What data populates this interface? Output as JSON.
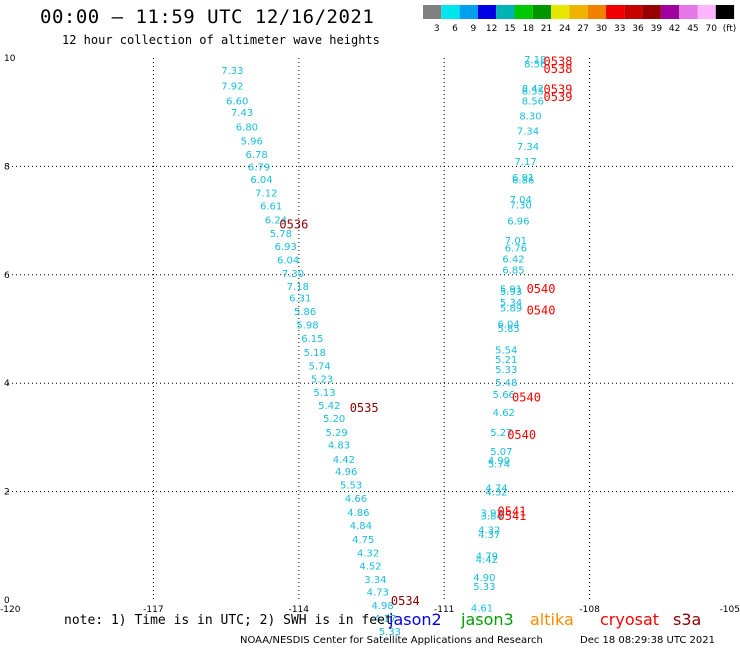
{
  "chart_data": {
    "type": "scatter",
    "title": "00:00 – 11:59 UTC 12/16/2021",
    "subtitle": "12 hour collection of altimeter wave heights",
    "xlim": [
      -120,
      -105
    ],
    "ylim": [
      0,
      10
    ],
    "x_ticks": [
      "-120",
      "-117",
      "-114",
      "-111",
      "-108",
      "-105"
    ],
    "y_ticks": [
      "0",
      "2",
      "4",
      "6",
      "8",
      "10"
    ],
    "grid": true,
    "colorbar": {
      "labels": [
        "3",
        "6",
        "9",
        "12",
        "15",
        "18",
        "21",
        "24",
        "27",
        "30",
        "33",
        "36",
        "39",
        "42",
        "45",
        "70",
        "(ft)"
      ],
      "colors": [
        "#808080",
        "#00e5ee",
        "#00a0f0",
        "#0000e6",
        "#00b4b4",
        "#00c800",
        "#009600",
        "#e6e600",
        "#f0b400",
        "#f08200",
        "#f00000",
        "#c80000",
        "#960000",
        "#a000a0",
        "#e678e6",
        "#ffb4ff",
        "#000000"
      ]
    },
    "swh_color": "#17bfdc",
    "series": [
      {
        "name": "",
        "values": [
          [
            -115.6,
            9.78,
            "7.33"
          ],
          [
            -115.6,
            9.49,
            "7.92"
          ],
          [
            -115.5,
            9.22,
            "6.60"
          ],
          [
            -115.4,
            9.0,
            "7.43"
          ],
          [
            -115.3,
            8.74,
            "6.80"
          ],
          [
            -115.2,
            8.48,
            "5.96"
          ],
          [
            -115.1,
            8.23,
            "6.78"
          ],
          [
            -115.05,
            8.0,
            "6.79"
          ],
          [
            -115.0,
            7.77,
            "6.04"
          ],
          [
            -114.9,
            7.52,
            "7.12"
          ],
          [
            -114.8,
            7.28,
            "6.61"
          ],
          [
            -114.7,
            7.02,
            "6.24"
          ],
          [
            -114.6,
            6.77,
            "5.78"
          ],
          [
            -114.5,
            6.53,
            "6.93"
          ],
          [
            -114.45,
            6.28,
            "6.04"
          ],
          [
            -114.35,
            6.03,
            "7.30"
          ],
          [
            -114.25,
            5.79,
            "7.18"
          ],
          [
            -114.2,
            5.58,
            "6.31"
          ],
          [
            -114.1,
            5.33,
            "5.86"
          ],
          [
            -114.05,
            5.08,
            "5.98"
          ],
          [
            -113.95,
            4.83,
            "6.15"
          ],
          [
            -113.9,
            4.58,
            "5.18"
          ],
          [
            -113.8,
            4.33,
            "5.74"
          ],
          [
            -113.75,
            4.09,
            "5.23"
          ],
          [
            -113.7,
            3.84,
            "5.13"
          ],
          [
            -113.6,
            3.6,
            "5.42"
          ],
          [
            -113.5,
            3.36,
            "5.20"
          ],
          [
            -113.45,
            3.1,
            "5.29"
          ],
          [
            -113.4,
            2.87,
            "4.83"
          ],
          [
            -113.3,
            2.6,
            "4.42"
          ],
          [
            -113.25,
            2.38,
            "4.96"
          ],
          [
            -113.15,
            2.13,
            "5.53"
          ],
          [
            -113.05,
            1.88,
            "4.66"
          ],
          [
            -113.0,
            1.62,
            "4.86"
          ],
          [
            -112.95,
            1.38,
            "4.84"
          ],
          [
            -112.9,
            1.13,
            "4.75"
          ],
          [
            -112.8,
            0.88,
            "4.32"
          ],
          [
            -112.75,
            0.64,
            "4.52"
          ],
          [
            -112.65,
            0.39,
            "3.34"
          ],
          [
            -112.6,
            0.16,
            "4.73"
          ],
          [
            -112.5,
            -0.09,
            "4.98"
          ],
          [
            -112.45,
            -0.33,
            "4.17"
          ],
          [
            -112.35,
            -0.57,
            "5.33"
          ]
        ]
      },
      {
        "name": "",
        "values": [
          [
            -109.35,
            9.98,
            "7.18"
          ],
          [
            -109.35,
            9.9,
            "8.56"
          ],
          [
            -109.4,
            9.45,
            "8.42"
          ],
          [
            -109.4,
            9.4,
            "8.55"
          ],
          [
            -109.4,
            9.22,
            "8.56"
          ],
          [
            -109.45,
            8.94,
            "8.30"
          ],
          [
            -109.5,
            8.66,
            "7.34"
          ],
          [
            -109.5,
            8.38,
            "7.34"
          ],
          [
            -109.55,
            8.1,
            "7.17"
          ],
          [
            -109.6,
            7.8,
            "6.91"
          ],
          [
            -109.6,
            7.76,
            "6.86"
          ],
          [
            -109.65,
            7.4,
            "7.04"
          ],
          [
            -109.65,
            7.3,
            "7.30"
          ],
          [
            -109.7,
            7.0,
            "6.96"
          ],
          [
            -109.75,
            6.64,
            "7.01"
          ],
          [
            -109.75,
            6.5,
            "6.76"
          ],
          [
            -109.8,
            6.3,
            "6.42"
          ],
          [
            -109.8,
            6.1,
            "6.85"
          ],
          [
            -109.85,
            5.75,
            "5.91"
          ],
          [
            -109.85,
            5.7,
            "5.93"
          ],
          [
            -109.85,
            5.5,
            "5.34"
          ],
          [
            -109.85,
            5.4,
            "5.89"
          ],
          [
            -109.9,
            5.1,
            "6.04"
          ],
          [
            -109.9,
            5.02,
            "5.85"
          ],
          [
            -109.95,
            4.62,
            "5.54"
          ],
          [
            -109.95,
            4.45,
            "5.21"
          ],
          [
            -109.95,
            4.26,
            "5.33"
          ],
          [
            -109.95,
            4.02,
            "5.48"
          ],
          [
            -110.0,
            3.8,
            "5.66"
          ],
          [
            -110.0,
            3.47,
            "4.62"
          ],
          [
            -110.05,
            3.1,
            "5.27"
          ],
          [
            -110.05,
            2.75,
            "5.07"
          ],
          [
            -110.1,
            2.58,
            "4.90"
          ],
          [
            -110.1,
            2.52,
            "5.74"
          ],
          [
            -110.15,
            2.08,
            "4.74"
          ],
          [
            -110.15,
            2.0,
            "4.32"
          ],
          [
            -110.25,
            1.61,
            "3.92"
          ],
          [
            -110.25,
            1.56,
            "3.84"
          ],
          [
            -110.3,
            1.3,
            "4.32"
          ],
          [
            -110.3,
            1.22,
            "4.37"
          ],
          [
            -110.35,
            0.82,
            "4.79"
          ],
          [
            -110.35,
            0.76,
            "4.42"
          ],
          [
            -110.4,
            0.42,
            "4.90"
          ],
          [
            -110.4,
            0.26,
            "5.33"
          ],
          [
            -110.45,
            -0.14,
            "4.61"
          ]
        ]
      }
    ],
    "time_labels": [
      {
        "x": -114.4,
        "y": 6.93,
        "text": "0536",
        "color": "#8b0000"
      },
      {
        "x": -112.95,
        "y": 3.54,
        "text": "0535",
        "color": "#8b0000"
      },
      {
        "x": -112.1,
        "y": -0.02,
        "text": "0534",
        "color": "#8b0000"
      },
      {
        "x": -108.95,
        "y": 9.94,
        "text": "0538",
        "color": "#ff0000"
      },
      {
        "x": -108.95,
        "y": 9.8,
        "text": "0538",
        "color": "#ff0000"
      },
      {
        "x": -108.95,
        "y": 9.42,
        "text": "0539",
        "color": "#ff0000"
      },
      {
        "x": -108.95,
        "y": 9.28,
        "text": "0539",
        "color": "#ff0000"
      },
      {
        "x": -109.3,
        "y": 5.74,
        "text": "0540",
        "color": "#ff0000"
      },
      {
        "x": -109.3,
        "y": 5.34,
        "text": "0540",
        "color": "#ff0000"
      },
      {
        "x": -109.6,
        "y": 3.74,
        "text": "0540",
        "color": "#ff0000"
      },
      {
        "x": -109.7,
        "y": 3.04,
        "text": "0540",
        "color": "#ff0000"
      },
      {
        "x": -109.9,
        "y": 1.63,
        "text": "0541",
        "color": "#ff0000"
      },
      {
        "x": -109.9,
        "y": 1.55,
        "text": "0541",
        "color": "#ff0000"
      }
    ]
  },
  "note": "note: 1) Time is in UTC; 2) SWH is in feet",
  "legend": [
    {
      "label": "jason2",
      "color": "#0000ee"
    },
    {
      "label": "jason3",
      "color": "#00a000"
    },
    {
      "label": "altika",
      "color": "#ff8c00"
    },
    {
      "label": "cryosat",
      "color": "#ff0000"
    },
    {
      "label": "s3a",
      "color": "#8b0000"
    }
  ],
  "footer": "NOAA/NESDIS Center for Satellite Applications and Research",
  "timestamp": "Dec 18 08:29:38 UTC 2021"
}
